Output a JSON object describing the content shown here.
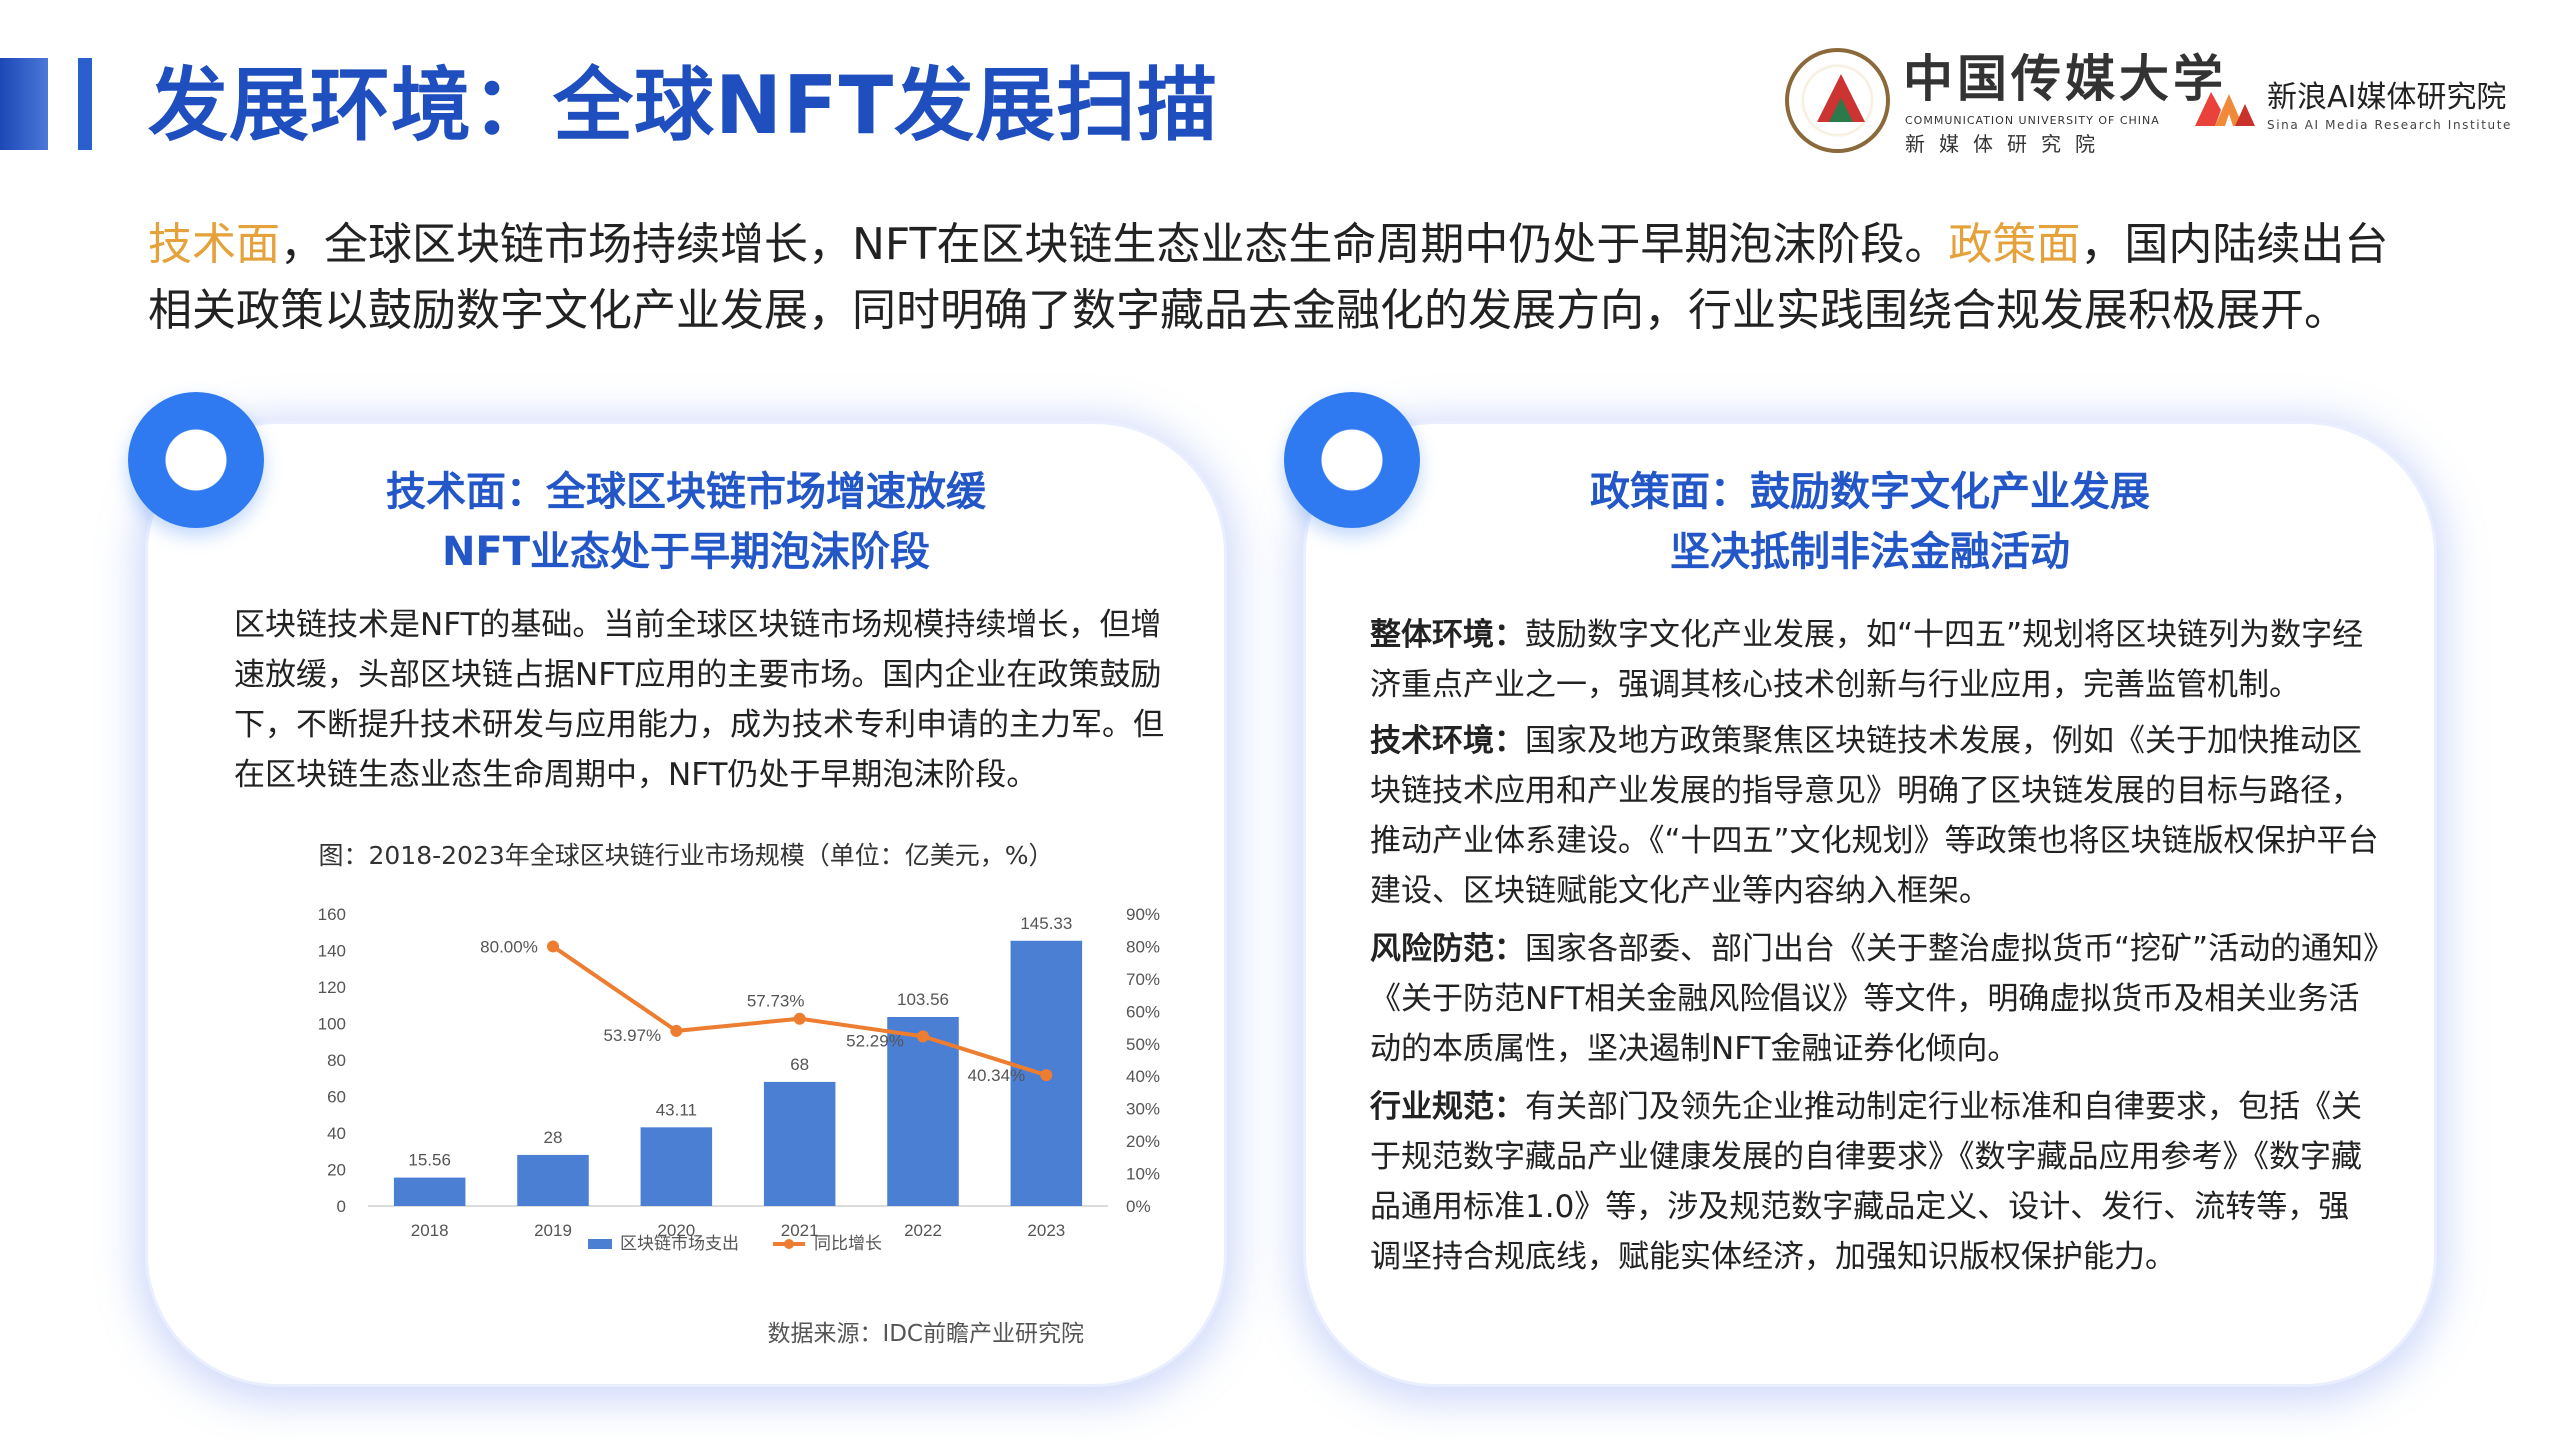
{
  "header": {
    "title": "发展环境：全球NFT发展扫描",
    "cuc_logo": {
      "name_cn": "中国传媒大学",
      "name_en": "COMMUNICATION UNIVERSITY OF CHINA",
      "subtitle": "新媒体研究院"
    },
    "sina_logo": {
      "name_cn": "新浪AI媒体研究院",
      "name_en": "Sina AI Media Research Institute"
    }
  },
  "intro": {
    "seg1_highlight": "技术面",
    "seg2": "，全球区块链市场持续增长，NFT在区块链生态业态生命周期中仍处于早期泡沫阶段。",
    "seg3_highlight": "政策面",
    "seg4": "，国内陆续出台相关政策以鼓励数字文化产业发展，同时明确了数字藏品去金融化的发展方向，行业实践围绕合规发展积极展开。"
  },
  "left_card": {
    "title_line1": "技术面：全球区块链市场增速放缓",
    "title_line2": "NFT业态处于早期泡沫阶段",
    "body": "区块链技术是NFT的基础。当前全球区块链市场规模持续增长，但增速放缓，头部区块链占据NFT应用的主要市场。国内企业在政策鼓励下，不断提升技术研发与应用能力，成为技术专利申请的主力军。但在区块链生态业态生命周期中，NFT仍处于早期泡沫阶段。",
    "chart_caption": "图：2018-2023年全球区块链行业市场规模（单位：亿美元，%）",
    "source": "数据来源：IDC前瞻产业研究院"
  },
  "right_card": {
    "title_line1": "政策面：鼓励数字文化产业发展",
    "title_line2": "坚决抵制非法金融活动",
    "items": [
      {
        "label": "整体环境：",
        "text": "鼓励数字文化产业发展，如“十四五”规划将区块链列为数字经济重点产业之一，强调其核心技术创新与行业应用，完善监管机制。"
      },
      {
        "label": "技术环境：",
        "text": "国家及地方政策聚焦区块链技术发展，例如《关于加快推动区块链技术应用和产业发展的指导意见》明确了区块链发展的目标与路径，推动产业体系建设。《“十四五”文化规划》等政策也将区块链版权保护平台建设、区块链赋能文化产业等内容纳入框架。"
      },
      {
        "label": "风险防范：",
        "text": "国家各部委、部门出台《关于整治虚拟货币“挖矿”活动的通知》《关于防范NFT相关金融风险倡议》等文件，明确虚拟货币及相关业务活动的本质属性，坚决遏制NFT金融证券化倾向。"
      },
      {
        "label": "行业规范：",
        "text": "有关部门及领先企业推动制定行业标准和自律要求，包括《关于规范数字藏品产业健康发展的自律要求》《数字藏品应用参考》《数字藏品通用标准1.0》等，涉及规范数字藏品定义、设计、发行、流转等，强调坚持合规底线，赋能实体经济，加强知识版权保护能力。"
      }
    ]
  },
  "colors": {
    "title_blue": "#1f4fbf",
    "highlight_orange": "#e5a13a",
    "bar_blue": "#4a7fd4",
    "line_orange": "#ed7d31"
  },
  "chart_data": {
    "type": "bar",
    "categories": [
      "2018",
      "2019",
      "2020",
      "2021",
      "2022",
      "2023"
    ],
    "series": [
      {
        "name": "区块链市场支出",
        "type": "bar",
        "axis": "left",
        "values": [
          15.56,
          28,
          43.11,
          68,
          103.56,
          145.33
        ],
        "labels": [
          "15.56",
          "28",
          "43.11",
          "68",
          "103.56",
          "145.33"
        ]
      },
      {
        "name": "同比增长",
        "type": "line",
        "axis": "right",
        "values": [
          null,
          80.0,
          53.97,
          57.73,
          52.29,
          40.34
        ],
        "labels": [
          null,
          "80.00%",
          "53.97%",
          "57.73%",
          "52.29%",
          "40.34%"
        ]
      }
    ],
    "yticks_left": [
      "0",
      "20",
      "40",
      "60",
      "80",
      "100",
      "120",
      "140",
      "160"
    ],
    "yticks_right": [
      "0%",
      "10%",
      "20%",
      "30%",
      "40%",
      "50%",
      "60%",
      "70%",
      "80%",
      "90%"
    ],
    "ylim_left": [
      0,
      160
    ],
    "ylim_right": [
      0,
      90
    ],
    "legend_position": "bottom",
    "grid": false
  }
}
